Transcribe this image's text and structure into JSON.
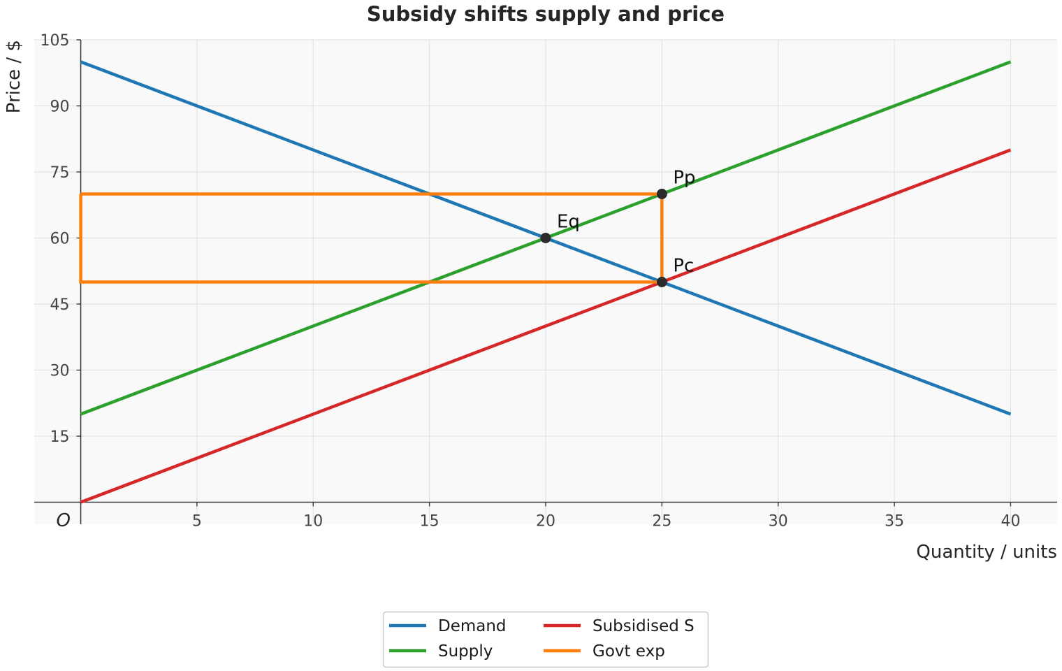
{
  "chart_data": {
    "type": "line",
    "title": "Subsidy shifts supply and price",
    "xlabel": "Quantity / units",
    "ylabel": "Price / $",
    "origin_label": "O",
    "xlim": [
      -2,
      42
    ],
    "ylim": [
      -5,
      105
    ],
    "xticks": [
      5,
      10,
      15,
      20,
      25,
      30,
      35,
      40
    ],
    "yticks": [
      15,
      30,
      45,
      60,
      75,
      90,
      105
    ],
    "grid": true,
    "legend_position": "bottom-center",
    "legend_columns": 2,
    "series": [
      {
        "name": "Demand",
        "color": "#1f77b4",
        "points": [
          [
            0,
            100
          ],
          [
            40,
            20
          ]
        ]
      },
      {
        "name": "Supply",
        "color": "#2ca02c",
        "points": [
          [
            0,
            20
          ],
          [
            40,
            100
          ]
        ]
      },
      {
        "name": "Subsidised S",
        "color": "#d62728",
        "points": [
          [
            0,
            0
          ],
          [
            40,
            80
          ]
        ]
      },
      {
        "name": "Govt exp",
        "color": "#ff7f0e",
        "points": [
          [
            0,
            70
          ],
          [
            25,
            70
          ],
          [
            25,
            50
          ],
          [
            0,
            50
          ],
          [
            0,
            70
          ]
        ]
      }
    ],
    "annotations": [
      {
        "label": "Eq",
        "x": 20,
        "y": 60
      },
      {
        "label": "Pp",
        "x": 25,
        "y": 70
      },
      {
        "label": "Pc",
        "x": 25,
        "y": 50
      }
    ]
  }
}
